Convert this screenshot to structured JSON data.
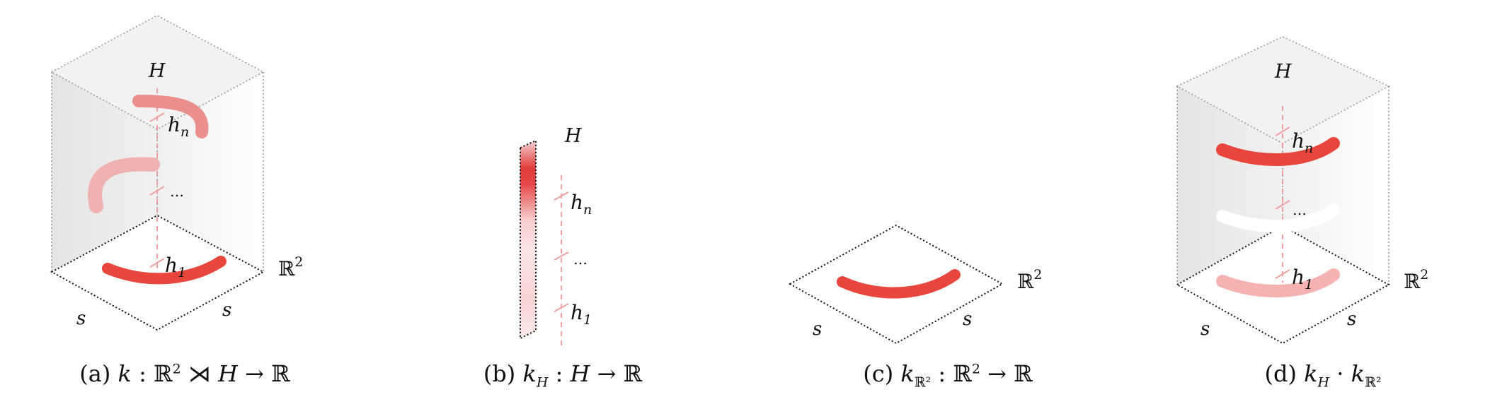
{
  "panels": [
    {
      "id": "a",
      "caption": {
        "prefix": "(a) ",
        "k": "k",
        "rest1": " : ℝ",
        "sup": "2",
        "rest2": " ⋊ ",
        "H": "H",
        "rest3": " → ℝ"
      },
      "axis_H": "H",
      "axis_R2": "ℝ",
      "axis_R2_sup": "2",
      "s_left": "s",
      "s_right": "s",
      "h_top": "h",
      "h_top_sub": "n",
      "ellipsis": "…",
      "h_bottom": "h",
      "h_bottom_sub": "1"
    },
    {
      "id": "b",
      "caption": {
        "prefix": "(b) ",
        "k": "k",
        "sub": "H",
        "rest1": " : ",
        "H": "H",
        "rest2": " → ℝ"
      },
      "axis_H": "H",
      "h_top": "h",
      "h_top_sub": "n",
      "ellipsis": "…",
      "h_bottom": "h",
      "h_bottom_sub": "1"
    },
    {
      "id": "c",
      "caption": {
        "prefix": "(c) ",
        "k": "k",
        "sub": "ℝ²",
        "rest1": " : ℝ",
        "sup": "2",
        "rest2": " → ℝ"
      },
      "axis_R2": "ℝ",
      "axis_R2_sup": "2",
      "s_left": "s",
      "s_right": "s"
    },
    {
      "id": "d",
      "caption": {
        "prefix": "(d) ",
        "k": "k",
        "sub1": "H",
        "dot": " · ",
        "k2": "k",
        "sub2": "ℝ²"
      },
      "axis_H": "H",
      "axis_R2": "ℝ",
      "axis_R2_sup": "2",
      "s_left": "s",
      "s_right": "s",
      "h_top": "h",
      "h_top_sub": "n",
      "ellipsis": "…",
      "h_bottom": "h",
      "h_bottom_sub": "1"
    }
  ],
  "colors": {
    "accent": "#e8453c",
    "dashed": "#f0a0a0"
  }
}
